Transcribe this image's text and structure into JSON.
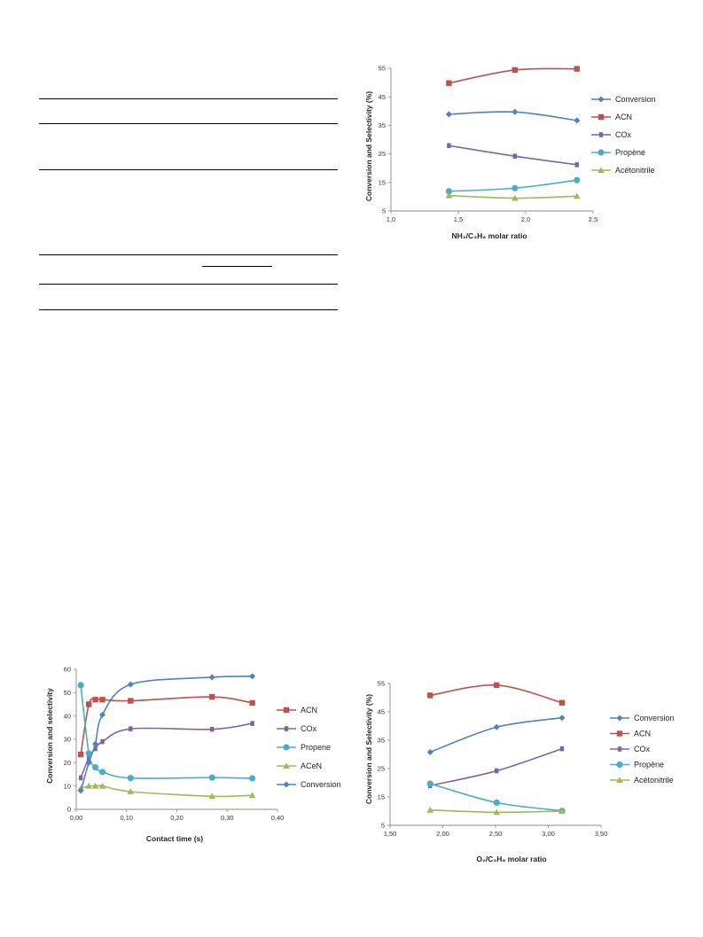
{
  "table_rules": [
    {
      "x1": 44,
      "x2": 381,
      "y": 111
    },
    {
      "x1": 44,
      "x2": 381,
      "y": 139
    },
    {
      "x1": 44,
      "x2": 381,
      "y": 191
    },
    {
      "x1": 44,
      "x2": 381,
      "y": 287
    },
    {
      "x1": 228,
      "x2": 307,
      "y": 300
    },
    {
      "x1": 44,
      "x2": 381,
      "y": 320
    },
    {
      "x1": 44,
      "x2": 381,
      "y": 349
    }
  ],
  "colors": {
    "Conversion": "#4f81bd",
    "ACN": "#c0504d",
    "COx": "#8064a2",
    "Propene": "#4bacc6",
    "Nitrile": "#9bbb59"
  },
  "chart_data": [
    {
      "id": "nh3",
      "type": "line",
      "xlabel": "NH₃/C₃H₈ molar ratio",
      "ylabel": "Conversion and Selectivity (%)",
      "xlim": [
        1.0,
        2.5
      ],
      "ylim": [
        5,
        55
      ],
      "xticks": [
        1.0,
        1.5,
        2.0,
        2.5
      ],
      "xtick_labels": [
        "1,0",
        "1,5",
        "2,0",
        "2,5"
      ],
      "yticks": [
        5,
        15,
        25,
        35,
        45,
        55
      ],
      "ytick_labels": [
        "5",
        "15",
        "25",
        "35",
        "45",
        "55"
      ],
      "x": [
        1.43,
        1.92,
        2.38
      ],
      "legend_position": "right",
      "series": [
        {
          "name": "Conversion",
          "color": "#4f81bd",
          "marker": "diamond",
          "values": [
            38.9,
            39.7,
            36.7
          ]
        },
        {
          "name": "ACN",
          "color": "#c0504d",
          "marker": "square",
          "values": [
            49.8,
            54.4,
            54.8
          ]
        },
        {
          "name": "COx",
          "color": "#8064a2",
          "marker": "bar",
          "values": [
            27.9,
            24.2,
            21.2
          ]
        },
        {
          "name": "Propène",
          "color": "#4bacc6",
          "marker": "circle",
          "values": [
            11.9,
            13.0,
            15.8
          ]
        },
        {
          "name": "Acétonitrile",
          "color": "#9bbb59",
          "marker": "triangle",
          "values": [
            10.4,
            9.5,
            10.2
          ]
        }
      ]
    },
    {
      "id": "contact",
      "type": "line",
      "xlabel": "Contact time (s)",
      "ylabel": "Conversion and selectivity",
      "xlim": [
        0.0,
        0.4
      ],
      "ylim": [
        0,
        60
      ],
      "xticks": [
        0.0,
        0.1,
        0.2,
        0.3,
        0.4
      ],
      "xtick_labels": [
        "0,00",
        "0,10",
        "0,20",
        "0,30",
        "0,40"
      ],
      "yticks": [
        0,
        10,
        20,
        30,
        40,
        50,
        60
      ],
      "ytick_labels": [
        "0",
        "10",
        "20",
        "30",
        "40",
        "50",
        "60"
      ],
      "x": [
        0.009,
        0.025,
        0.038,
        0.052,
        0.108,
        0.27,
        0.35
      ],
      "legend_position": "right",
      "series": [
        {
          "name": "ACN",
          "color": "#c0504d",
          "marker": "square",
          "values": [
            23.5,
            45.0,
            47.0,
            47.0,
            46.5,
            48.2,
            45.6
          ]
        },
        {
          "name": "COx",
          "color": "#8064a2",
          "marker": "bar",
          "values": [
            13.5,
            22.0,
            26.0,
            29.0,
            34.5,
            34.3,
            36.8
          ]
        },
        {
          "name": "Propene",
          "color": "#4bacc6",
          "marker": "circle",
          "values": [
            53.2,
            24.0,
            18.0,
            16.0,
            13.4,
            13.6,
            13.3
          ]
        },
        {
          "name": "ACeN",
          "color": "#9bbb59",
          "marker": "triangle",
          "values": [
            9.0,
            10.0,
            10.0,
            10.0,
            7.6,
            5.6,
            6.0
          ]
        },
        {
          "name": "Conversion",
          "color": "#4f81bd",
          "marker": "diamond",
          "values": [
            8.0,
            20.0,
            28.0,
            40.5,
            53.5,
            56.6,
            57.0
          ]
        }
      ]
    },
    {
      "id": "o2",
      "type": "line",
      "xlabel": "O₂/C₃H₈ molar ratio",
      "ylabel": "Conversion and Selectivity (%)",
      "xlim": [
        1.5,
        3.5
      ],
      "ylim": [
        5,
        55
      ],
      "xticks": [
        1.5,
        2.0,
        2.5,
        3.0,
        3.5
      ],
      "xtick_labels": [
        "1,50",
        "2,00",
        "2,50",
        "3,00",
        "3,50"
      ],
      "yticks": [
        5,
        15,
        25,
        35,
        45,
        55
      ],
      "ytick_labels": [
        "5",
        "15",
        "25",
        "35",
        "45",
        "55"
      ],
      "x": [
        1.88,
        2.51,
        3.13
      ],
      "legend_position": "right",
      "series": [
        {
          "name": "Conversion",
          "color": "#4f81bd",
          "marker": "diamond",
          "values": [
            30.8,
            39.6,
            42.9
          ]
        },
        {
          "name": "ACN",
          "color": "#c0504d",
          "marker": "square",
          "values": [
            50.8,
            54.4,
            48.2
          ]
        },
        {
          "name": "COx",
          "color": "#8064a2",
          "marker": "bar",
          "values": [
            19.0,
            24.2,
            32.0
          ]
        },
        {
          "name": "Propène",
          "color": "#4bacc6",
          "marker": "circle",
          "values": [
            19.7,
            13.0,
            10.1
          ]
        },
        {
          "name": "Acétonitrile",
          "color": "#9bbb59",
          "marker": "triangle",
          "values": [
            10.4,
            9.6,
            10.0
          ]
        }
      ]
    }
  ]
}
